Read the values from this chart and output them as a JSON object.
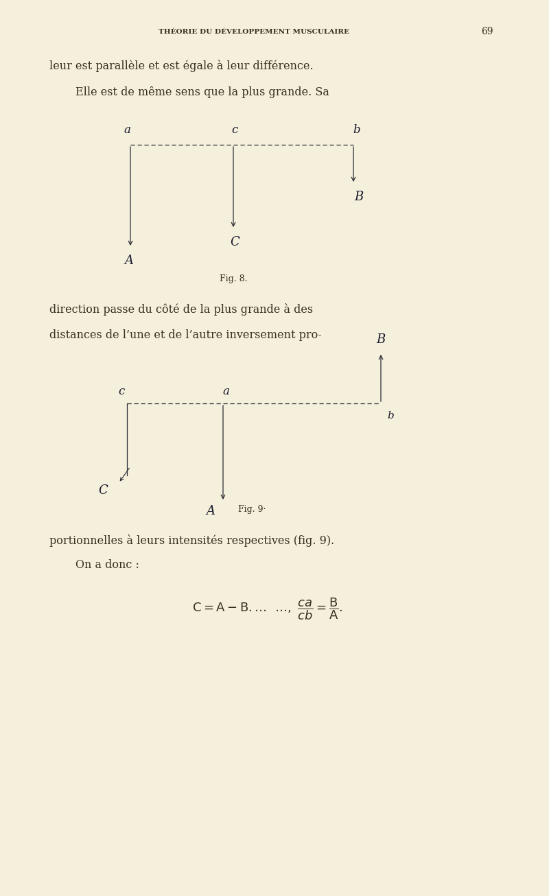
{
  "bg_color": "#f5f0dc",
  "page_width": 8.0,
  "page_height": 13.06,
  "header_text": "THÉORIE DU DÉVELOPPEMENT MUSCULAIRE",
  "header_page_num": "69",
  "line1": "leur est parallèle et est égale à leur différence.",
  "line2": "Elle est de même sens que la plus grande. Sa",
  "fig8_caption": "Fig. 8.",
  "fig8_label_a": "a",
  "fig8_label_c": "c",
  "fig8_label_b": "b",
  "fig8_label_A": "A",
  "fig8_label_C": "C",
  "fig8_label_B": "B",
  "fig9_caption": "Fig. 9·",
  "fig9_label_c": "c",
  "fig9_label_a": "a",
  "fig9_label_b": "b",
  "fig9_label_B": "B",
  "fig9_label_C": "C",
  "fig9_label_A": "A",
  "line3": "direction passe du côté de la plus grande à des",
  "line4": "distances de l’une et de l’autre inversement pro-",
  "line5": "portionnelles à leurs intensités respectives (fig. 9).",
  "line6": "On a donc :",
  "ink_color": "#2a2a35",
  "handwriting_color": "#1a1a2e",
  "text_color": "#3a3020"
}
